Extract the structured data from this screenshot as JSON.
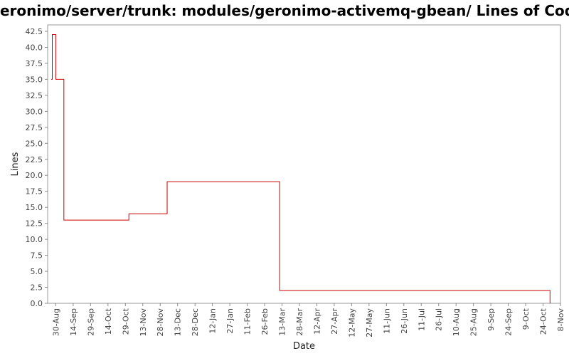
{
  "chart_data": {
    "type": "line",
    "title": "/geronimo/server/trunk: modules/geronimo-activemq-gbean/ Lines of Code",
    "xlabel": "Date",
    "ylabel": "Lines",
    "ylim": [
      0,
      43.5
    ],
    "yticks": [
      "0.0",
      "2.5",
      "5.0",
      "7.5",
      "10.0",
      "12.5",
      "15.0",
      "17.5",
      "20.0",
      "22.5",
      "25.0",
      "27.5",
      "30.0",
      "32.5",
      "35.0",
      "37.5",
      "40.0",
      "42.5"
    ],
    "xlim": [
      "2006-08-23",
      "2007-11-08"
    ],
    "xtick_labels": [
      "30-Aug",
      "14-Sep",
      "29-Sep",
      "14-Oct",
      "29-Oct",
      "13-Nov",
      "28-Nov",
      "13-Dec",
      "28-Dec",
      "12-Jan",
      "27-Jan",
      "11-Feb",
      "26-Feb",
      "13-Mar",
      "28-Mar",
      "12-Apr",
      "27-Apr",
      "12-May",
      "27-May",
      "11-Jun",
      "26-Jun",
      "11-Jul",
      "26-Jul",
      "10-Aug",
      "25-Aug",
      "9-Sep",
      "24-Sep",
      "9-Oct",
      "24-Oct",
      "8-Nov"
    ],
    "xtick_dates": [
      "2006-08-30",
      "2006-09-14",
      "2006-09-29",
      "2006-10-14",
      "2006-10-29",
      "2006-11-13",
      "2006-11-28",
      "2006-12-13",
      "2006-12-28",
      "2007-01-12",
      "2007-01-27",
      "2007-02-11",
      "2007-02-26",
      "2007-03-13",
      "2007-03-28",
      "2007-04-12",
      "2007-04-27",
      "2007-05-12",
      "2007-05-27",
      "2007-06-11",
      "2007-06-26",
      "2007-07-11",
      "2007-07-26",
      "2007-08-10",
      "2007-08-25",
      "2007-09-09",
      "2007-09-24",
      "2007-10-09",
      "2007-10-24",
      "2007-11-08"
    ],
    "series": [
      {
        "color": "#cc0000",
        "step": true,
        "points": [
          [
            "2006-08-26",
            35
          ],
          [
            "2006-08-27",
            42
          ],
          [
            "2006-08-30",
            35
          ],
          [
            "2006-09-06",
            13
          ],
          [
            "2006-11-01",
            14
          ],
          [
            "2006-12-04",
            19
          ],
          [
            "2007-03-11",
            2
          ],
          [
            "2007-10-30",
            0
          ]
        ]
      }
    ],
    "grid": false,
    "legend": "none"
  }
}
